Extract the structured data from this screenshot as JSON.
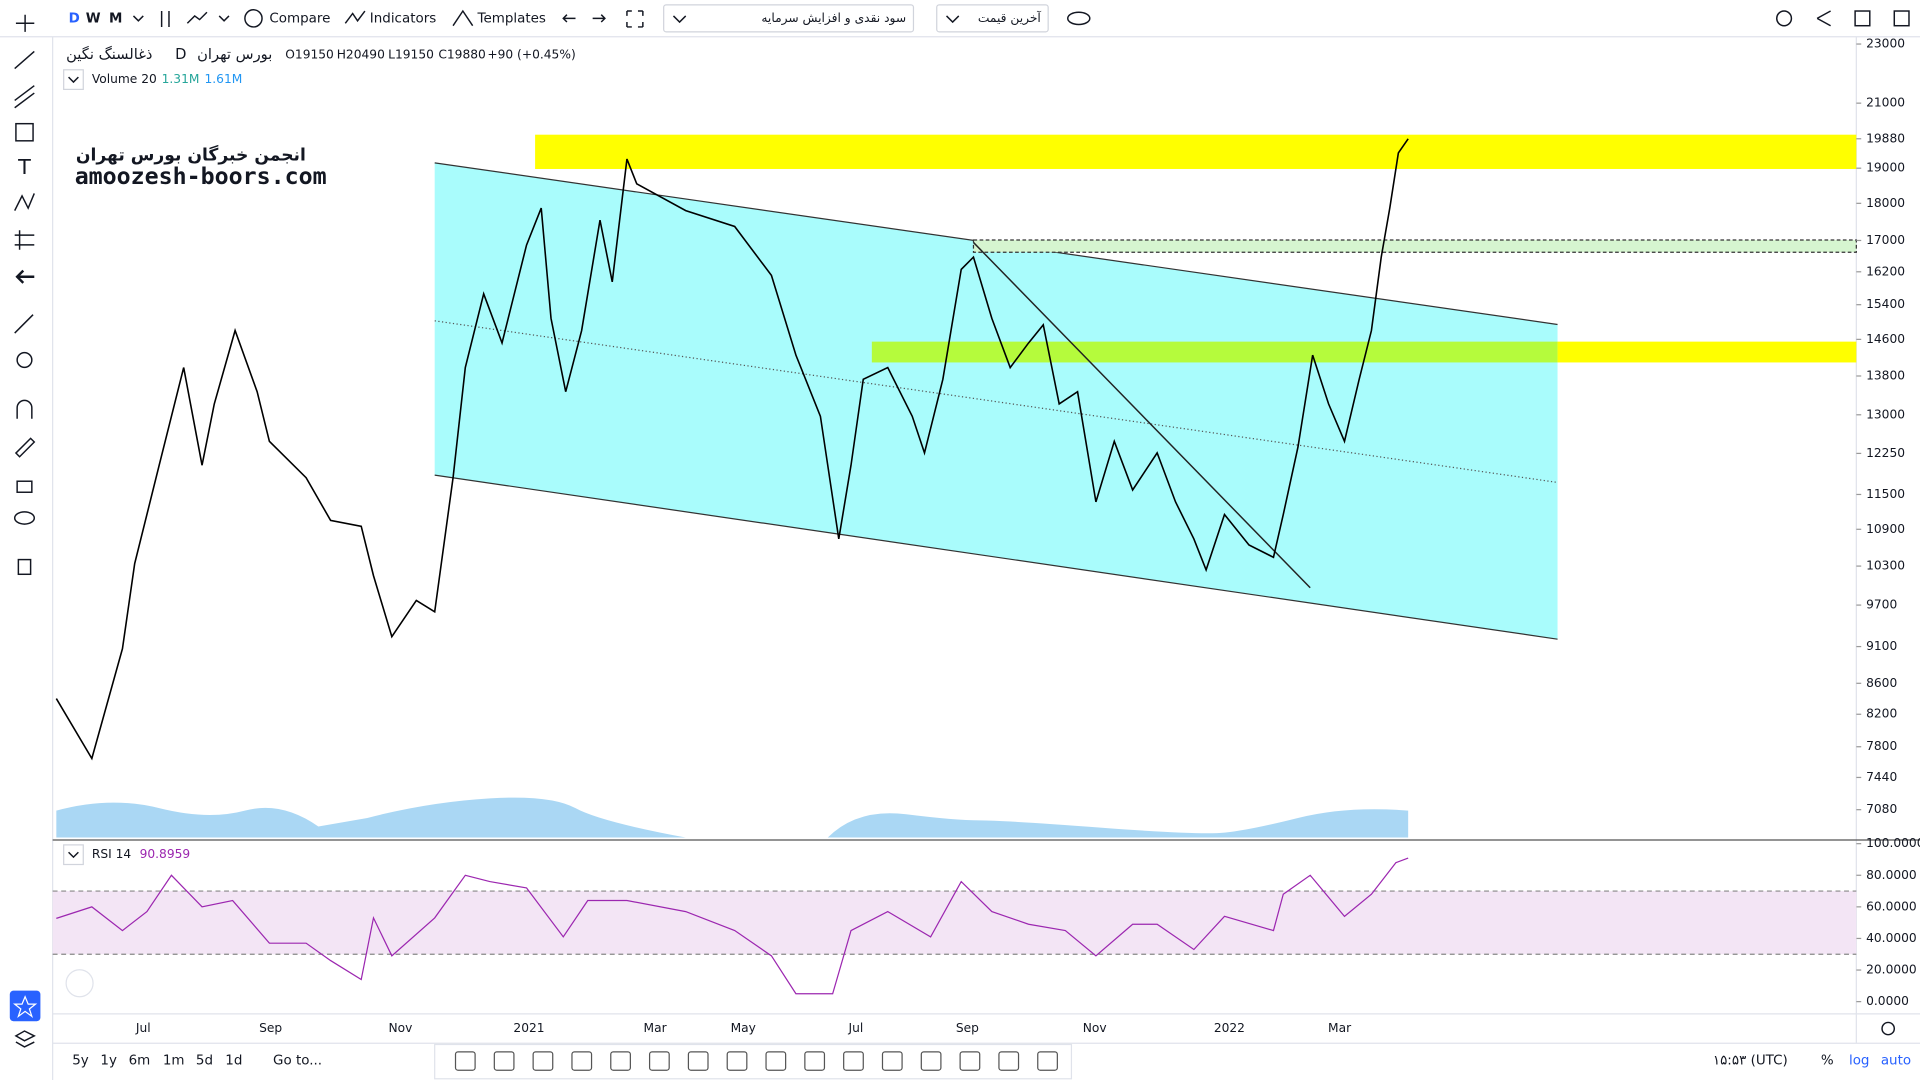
{
  "toolbar": {
    "intervals": [
      "D",
      "W",
      "M"
    ],
    "compare": "Compare",
    "indicators": "Indicators",
    "templates": "Templates",
    "symbol_dropdown": "سود نقدی و افزایش سرمایه",
    "price_dropdown": "آخرین قیمت"
  },
  "legend": {
    "symbol": "ذغالسنگ نگین",
    "interval": "D",
    "exchange": "بورس تهران",
    "open": "O19150",
    "high": "H20490",
    "low": "L19150",
    "close": "C19880",
    "change": "+90 (+0.45%)",
    "volume_label": "Volume 20",
    "volume_values": [
      "1.31M",
      "1.61M"
    ],
    "rsi_label": "RSI 14",
    "rsi_value": "90.8959"
  },
  "watermark": {
    "line1": "انجمن خبرگان بورس تهران",
    "line2": "amoozesh-boors.com"
  },
  "chart_data": [
    {
      "type": "line",
      "color": "#000000",
      "log": true,
      "values": [
        8400,
        7660,
        9070,
        10340,
        12030,
        13980,
        12030,
        13220,
        14800,
        13470,
        12480,
        11800,
        11050,
        10950,
        10150,
        9240,
        9770,
        9600,
        11800,
        13980,
        15660,
        14520,
        16880,
        17870,
        15080,
        13470,
        14800,
        17540,
        15950,
        19270,
        18550,
        17800,
        17370,
        16110,
        14250,
        12970,
        10740,
        12030,
        13730,
        13980,
        12970,
        12260,
        13730,
        16260,
        16570,
        15080,
        13980,
        14520,
        14930,
        13220,
        13470,
        11370,
        12480,
        11580,
        12260,
        11370,
        10740,
        10240,
        11150,
        10640,
        10440,
        11150,
        12370,
        14250,
        13220,
        12480,
        13730,
        14800,
        16570,
        17870,
        19450,
        19880
      ],
      "ylim": [
        6770,
        23260
      ],
      "yticks": [
        23000,
        21000,
        19880,
        19000,
        18000,
        17000,
        16200,
        15400,
        14600,
        13800,
        13000,
        12250,
        11500,
        10900,
        10300,
        9700,
        9100,
        8600,
        8200,
        7800,
        7440,
        7080
      ],
      "xlabels": [
        "Jul",
        "Sep",
        "Nov",
        "2021",
        "Mar",
        "May",
        "Jul",
        "Sep",
        "Nov",
        "2022",
        "Mar"
      ]
    },
    {
      "type": "line",
      "color": "#9c27b0",
      "values": [
        52.7,
        60,
        45,
        57,
        80,
        72,
        60,
        64,
        37,
        37,
        26,
        14,
        53,
        29,
        53,
        80,
        76,
        72,
        41,
        64,
        64,
        57,
        45,
        29,
        5,
        5,
        45,
        57,
        41,
        76,
        57,
        49,
        45,
        29,
        49,
        49,
        33,
        54,
        45,
        68,
        80,
        54,
        68,
        88,
        90.8959
      ],
      "ylim": [
        0,
        100
      ],
      "yticks": [
        {
          "value": 100,
          "label": "100.0000"
        },
        {
          "value": 80,
          "label": "80.0000"
        },
        {
          "value": 60,
          "label": "60.0000"
        },
        {
          "value": 40,
          "label": "40.0000"
        },
        {
          "value": 20,
          "label": "20.0000"
        },
        {
          "value": 0,
          "label": "0.0000"
        }
      ],
      "band": [
        30,
        70
      ]
    }
  ],
  "bottom_toolbar": {
    "ranges": [
      "5y",
      "1y",
      "6m",
      "1m",
      "5d",
      "1d"
    ],
    "goto": "Go to...",
    "clock": "۱۵:۵۳ (UTC)",
    "percent": "%",
    "log": "log",
    "auto": "auto"
  }
}
